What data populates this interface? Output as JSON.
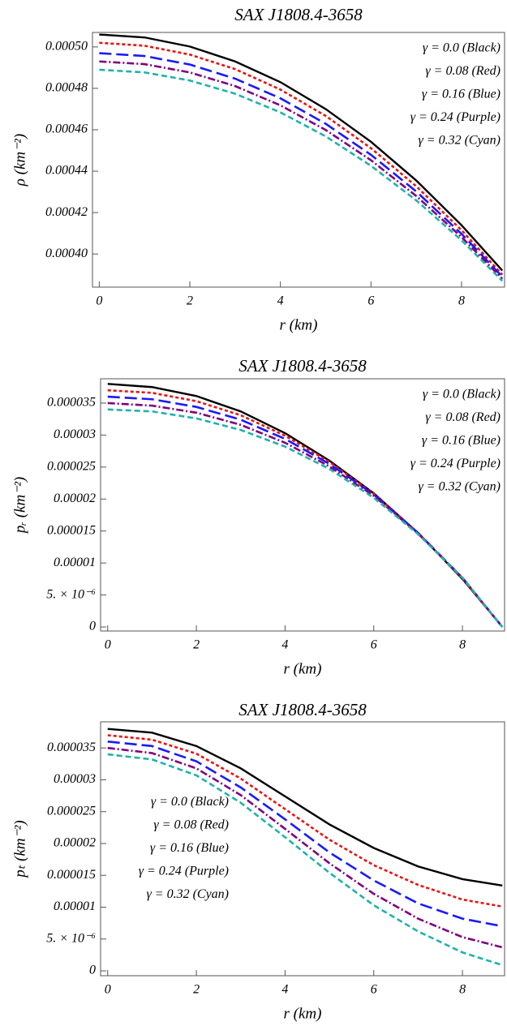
{
  "chart_data": [
    {
      "type": "line",
      "title": "SAX J1808.4-3658",
      "x_label": "r (km)",
      "y_label": "ρ (km⁻²)",
      "x": [
        0,
        1,
        2,
        3,
        4,
        5,
        6,
        7,
        8,
        8.9
      ],
      "xlim": [
        -0.15,
        8.95
      ],
      "xticks": [
        0,
        2,
        4,
        6,
        8
      ],
      "ylim": [
        0.000384,
        0.000507
      ],
      "yticks": [
        {
          "value": 0.0004,
          "label": "0.00040"
        },
        0.00042,
        0.00044,
        0.00046,
        0.00048,
        {
          "value": 0.0005,
          "label": "0.00050"
        }
      ],
      "legend": "upper right",
      "series": [
        {
          "name": "γ = 0.0 (Black)",
          "color": "#000000",
          "dash": "solid",
          "values": [
            0.000506,
            0.0005046,
            0.0005002,
            0.000493,
            0.000483,
            0.00047,
            0.0004542,
            0.0004355,
            0.0004139,
            0.000392
          ]
        },
        {
          "name": "γ = 0.08 (Red)",
          "color": "#ee1111",
          "dash": "dotted",
          "values": [
            0.000502,
            0.0005006,
            0.0004963,
            0.0004893,
            0.0004794,
            0.0004667,
            0.0004511,
            0.0004327,
            0.0004115,
            0.00039
          ]
        },
        {
          "name": "γ = 0.16 (Blue)",
          "color": "#1a1aff",
          "dash": "long-dash",
          "values": [
            0.000497,
            0.0004956,
            0.0004915,
            0.0004847,
            0.0004752,
            0.0004629,
            0.0004479,
            0.0004302,
            0.0004097,
            0.000389
          ]
        },
        {
          "name": "γ = 0.24 (Purple)",
          "color": "#800080",
          "dash": "dash-dot",
          "values": [
            0.000493,
            0.0004917,
            0.0004877,
            0.0004811,
            0.0004718,
            0.0004599,
            0.0004453,
            0.000428,
            0.0004082,
            0.000388
          ]
        },
        {
          "name": "γ = 0.32 (Cyan)",
          "color": "#20b2aa",
          "dash": "dashed",
          "values": [
            0.000489,
            0.0004877,
            0.0004838,
            0.0004774,
            0.0004684,
            0.0004568,
            0.0004426,
            0.0004259,
            0.0004066,
            0.000387
          ]
        }
      ]
    },
    {
      "type": "line",
      "title": "SAX J1808.4-3658",
      "x_label": "r (km)",
      "y_label": "pᵣ (km⁻²)",
      "x": [
        0,
        1,
        2,
        3,
        4,
        5,
        6,
        7,
        8,
        8.9
      ],
      "xlim": [
        -0.16,
        8.95
      ],
      "xticks": [
        0,
        2,
        4,
        6,
        8
      ],
      "ylim": [
        -6.3e-07,
        3.88e-05
      ],
      "yticks": [
        0,
        {
          "value": 5e-06,
          "label": "5. × 10⁻⁶"
        },
        1e-05,
        1.5e-05,
        2e-05,
        2.5e-05,
        3e-05,
        3.5e-05
      ],
      "legend": "upper right",
      "series": [
        {
          "name": "γ = 0.0 (Black)",
          "color": "#000000",
          "dash": "solid",
          "values": [
            3.8e-05,
            3.75e-05,
            3.61e-05,
            3.37e-05,
            3.03e-05,
            2.6e-05,
            2.09e-05,
            1.47e-05,
            7.5e-06,
            0
          ]
        },
        {
          "name": "γ = 0.08 (Red)",
          "color": "#ee1111",
          "dash": "dotted",
          "values": [
            3.7e-05,
            3.66e-05,
            3.53e-05,
            3.31e-05,
            2.99e-05,
            2.58e-05,
            2.08e-05,
            1.47e-05,
            7.6e-06,
            0
          ]
        },
        {
          "name": "γ = 0.16 (Blue)",
          "color": "#1a1aff",
          "dash": "long-dash",
          "values": [
            3.6e-05,
            3.56e-05,
            3.44e-05,
            3.24e-05,
            2.94e-05,
            2.55e-05,
            2.07e-05,
            1.47e-05,
            7.7e-06,
            0
          ]
        },
        {
          "name": "γ = 0.24 (Purple)",
          "color": "#800080",
          "dash": "dash-dot",
          "values": [
            3.5e-05,
            3.46e-05,
            3.35e-05,
            3.16e-05,
            2.88e-05,
            2.51e-05,
            2.05e-05,
            1.46e-05,
            7.7e-06,
            0
          ]
        },
        {
          "name": "γ = 0.32 (Cyan)",
          "color": "#20b2aa",
          "dash": "dashed",
          "values": [
            3.4e-05,
            3.37e-05,
            3.26e-05,
            3.08e-05,
            2.82e-05,
            2.47e-05,
            2.02e-05,
            1.45e-05,
            7.7e-06,
            0
          ]
        }
      ]
    },
    {
      "type": "line",
      "title": "SAX J1808.4-3658",
      "x_label": "r (km)",
      "y_label": "pₜ (km⁻²)",
      "x": [
        0,
        1,
        2,
        3,
        4,
        5,
        6,
        7,
        8,
        8.9
      ],
      "xlim": [
        -0.16,
        8.95
      ],
      "xticks": [
        0,
        2,
        4,
        6,
        8
      ],
      "ylim": [
        -7.6e-07,
        3.91e-05
      ],
      "yticks": [
        0,
        {
          "value": 5e-06,
          "label": "5. × 10⁻⁶"
        },
        1e-05,
        1.5e-05,
        2e-05,
        2.5e-05,
        3e-05,
        3.5e-05
      ],
      "legend": "center left",
      "series": [
        {
          "name": "γ = 0.0 (Black)",
          "color": "#000000",
          "dash": "solid",
          "values": [
            3.8e-05,
            3.74e-05,
            3.53e-05,
            3.18e-05,
            2.74e-05,
            2.3e-05,
            1.93e-05,
            1.64e-05,
            1.44e-05,
            1.34e-05
          ]
        },
        {
          "name": "γ = 0.08 (Red)",
          "color": "#ee1111",
          "dash": "dotted",
          "values": [
            3.7e-05,
            3.63e-05,
            3.41e-05,
            3.02e-05,
            2.54e-05,
            2.06e-05,
            1.66e-05,
            1.35e-05,
            1.12e-05,
            1.01e-05
          ]
        },
        {
          "name": "γ = 0.16 (Blue)",
          "color": "#1a1aff",
          "dash": "long-dash",
          "values": [
            3.6e-05,
            3.53e-05,
            3.29e-05,
            2.88e-05,
            2.38e-05,
            1.86e-05,
            1.42e-05,
            1.06e-05,
            8.2e-06,
            7e-06
          ]
        },
        {
          "name": "γ = 0.24 (Purple)",
          "color": "#800080",
          "dash": "dash-dot",
          "values": [
            3.5e-05,
            3.42e-05,
            3.18e-05,
            2.76e-05,
            2.23e-05,
            1.69e-05,
            1.21e-05,
            8.2e-06,
            5.3e-06,
            3.7e-06
          ]
        },
        {
          "name": "γ = 0.32 (Cyan)",
          "color": "#20b2aa",
          "dash": "dashed",
          "values": [
            3.4e-05,
            3.32e-05,
            3.07e-05,
            2.64e-05,
            2.1e-05,
            1.54e-05,
            1.03e-05,
            6.2e-06,
            2.9e-06,
            9e-07
          ]
        }
      ]
    }
  ]
}
